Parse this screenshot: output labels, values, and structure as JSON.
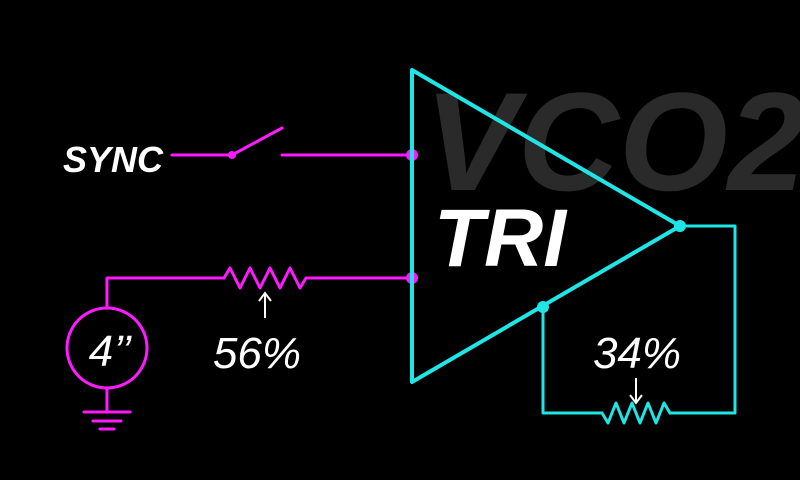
{
  "watermark": {
    "text": "VCO2",
    "color": "#2a2a2a"
  },
  "colors": {
    "background": "#000000",
    "input_wires": "#ff1aff",
    "output_wires": "#1fe6e6",
    "text": "#ffffff"
  },
  "triangle": {
    "label": "TRI"
  },
  "inputs": {
    "sync": {
      "label": "SYNC",
      "switch_icon": "switch-open-icon"
    },
    "source": {
      "label": "4’’",
      "icon": "source-circle-icon",
      "ground_icon": "ground-icon"
    },
    "input_resistor": {
      "label": "56%",
      "icon": "resistor-icon",
      "wiper_icon": "arrow-up-icon"
    }
  },
  "feedback": {
    "resistor_label": "34%",
    "icon": "resistor-icon",
    "wiper_icon": "arrow-down-icon"
  }
}
